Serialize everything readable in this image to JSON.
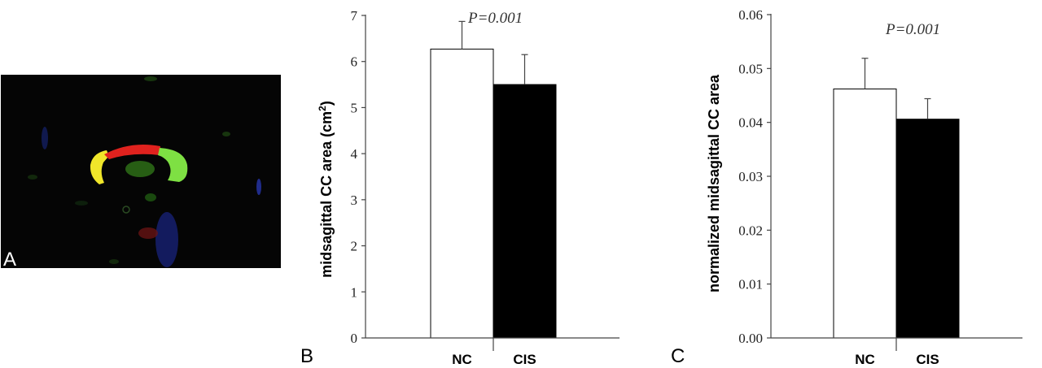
{
  "panels": {
    "a": {
      "letter": "A"
    },
    "b": {
      "letter": "B"
    },
    "c": {
      "letter": "C"
    }
  },
  "colors": {
    "background": "#ffffff",
    "image_bg": "#050505",
    "cc_red": "#e0221e",
    "cc_yellow": "#f0e62a",
    "cc_green": "#7ee043",
    "bar_nc": "#ffffff",
    "bar_cis": "#000000",
    "axis": "#444444"
  },
  "chart_data": [
    {
      "type": "bar",
      "categories": [
        "NC",
        "CIS"
      ],
      "values": [
        6.27,
        5.5
      ],
      "errors": [
        0.6,
        0.65
      ],
      "ylabel": "midsagittal CC area (cm",
      "ylabel_sup": "2",
      "ylabel_suffix": ")",
      "ylim": [
        0,
        7
      ],
      "yticks": [
        0,
        1,
        2,
        3,
        4,
        5,
        6,
        7
      ],
      "ytick_labels": [
        "0",
        "1",
        "2",
        "3",
        "4",
        "5",
        "6",
        "7"
      ],
      "annotation": "P=0.001",
      "grid": false
    },
    {
      "type": "bar",
      "categories": [
        "NC",
        "CIS"
      ],
      "values": [
        0.0462,
        0.0406
      ],
      "errors": [
        0.0057,
        0.0038
      ],
      "ylabel": "normalized midsagittal CC area",
      "ylim": [
        0,
        0.06
      ],
      "yticks": [
        0,
        0.01,
        0.02,
        0.03,
        0.04,
        0.05,
        0.06
      ],
      "ytick_labels": [
        "0.00",
        "0.01",
        "0.02",
        "0.03",
        "0.04",
        "0.05",
        "0.06"
      ],
      "annotation": "P=0.001",
      "grid": false
    }
  ]
}
